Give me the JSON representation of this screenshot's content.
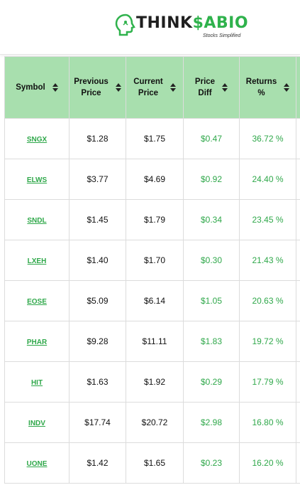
{
  "brand": {
    "name_prefix": "THINK",
    "name_accent": "$",
    "name_suffix": "ABIO",
    "tagline": "Stocks Simplified",
    "accent_color": "#2fb24c"
  },
  "table": {
    "header_bg": "#a8dfae",
    "value_color": "#2fa84a",
    "columns": [
      {
        "label_line1": "Symbol",
        "label_line2": ""
      },
      {
        "label_line1": "Previous",
        "label_line2": "Price"
      },
      {
        "label_line1": "Current",
        "label_line2": "Price"
      },
      {
        "label_line1": "Price",
        "label_line2": "Diff"
      },
      {
        "label_line1": "Returns",
        "label_line2": "%"
      }
    ],
    "sort_icon": "sort-icon",
    "rows": [
      {
        "symbol": "SNGX",
        "previous": "$1.28",
        "current": "$1.75",
        "diff": "$0.47",
        "returns": "36.72 %"
      },
      {
        "symbol": "ELWS",
        "previous": "$3.77",
        "current": "$4.69",
        "diff": "$0.92",
        "returns": "24.40 %"
      },
      {
        "symbol": "SNDL",
        "previous": "$1.45",
        "current": "$1.79",
        "diff": "$0.34",
        "returns": "23.45 %"
      },
      {
        "symbol": "LXEH",
        "previous": "$1.40",
        "current": "$1.70",
        "diff": "$0.30",
        "returns": "21.43 %"
      },
      {
        "symbol": "EOSE",
        "previous": "$5.09",
        "current": "$6.14",
        "diff": "$1.05",
        "returns": "20.63 %"
      },
      {
        "symbol": "PHAR",
        "previous": "$9.28",
        "current": "$11.11",
        "diff": "$1.83",
        "returns": "19.72 %"
      },
      {
        "symbol": "HIT",
        "previous": "$1.63",
        "current": "$1.92",
        "diff": "$0.29",
        "returns": "17.79 %"
      },
      {
        "symbol": "INDV",
        "previous": "$17.74",
        "current": "$20.72",
        "diff": "$2.98",
        "returns": "16.80 %"
      },
      {
        "symbol": "UONE",
        "previous": "$1.42",
        "current": "$1.65",
        "diff": "$0.23",
        "returns": "16.20 %"
      }
    ]
  }
}
